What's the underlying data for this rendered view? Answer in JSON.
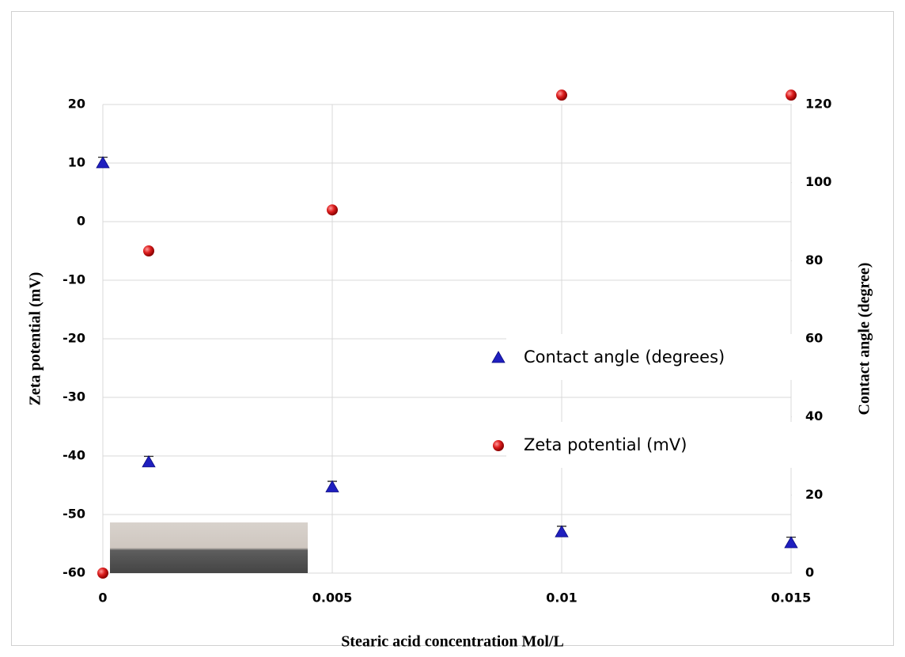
{
  "chart_data": {
    "type": "scatter",
    "x_label": "Stearic  acid concentration Mol/L",
    "y_label": "Zeta potential (mV)",
    "y2_label": "Contact angle (degree)",
    "x": [
      0,
      0.001,
      0.005,
      0.01,
      0.015
    ],
    "xlim": [
      0,
      0.015
    ],
    "xticks": [
      0,
      0.005,
      0.01,
      0.015
    ],
    "ylim": [
      -60,
      20
    ],
    "yticks": [
      -60,
      -50,
      -40,
      -30,
      -20,
      -10,
      0,
      10,
      20
    ],
    "y2lim": [
      0,
      120
    ],
    "y2ticks": [
      0,
      20,
      40,
      60,
      80,
      100,
      120
    ],
    "grid": true,
    "legend": "center-right",
    "series": [
      {
        "name": "Contact angle  (degrees)",
        "color": "#1f1fbf",
        "marker": "triangle",
        "axis": "y2",
        "values": [
          105,
          28.4,
          22,
          10.5,
          7.7
        ],
        "errors": [
          1.5,
          1.5,
          1.5,
          1.5,
          1.5
        ]
      },
      {
        "name": "Zeta potential (mV)",
        "color": "#d61a1a",
        "marker": "circle",
        "axis": "y",
        "values": [
          -60,
          -5,
          2,
          21.6,
          21.6
        ]
      }
    ]
  }
}
